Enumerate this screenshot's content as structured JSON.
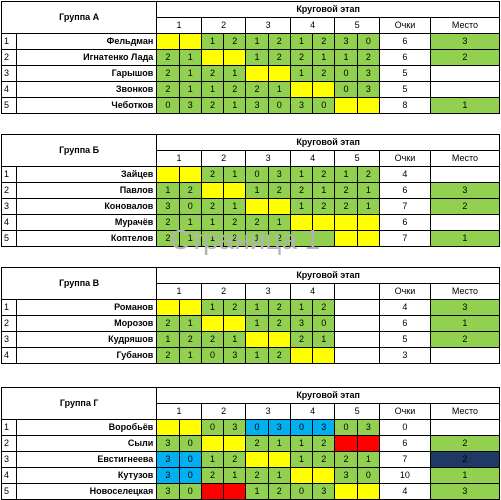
{
  "stage_label": "Круговой этап",
  "points_label": "Очки",
  "place_label": "Место",
  "watermark": "Страница 1",
  "groups": [
    {
      "title": "Группа А",
      "rounds": [
        "1",
        "2",
        "3",
        "4",
        "5"
      ],
      "rows": [
        {
          "num": "1",
          "name": "Фельдман",
          "cells": [
            {
              "a": "",
              "b": "",
              "c": "y"
            },
            {
              "a": "1",
              "b": "2",
              "c": "g"
            },
            {
              "a": "1",
              "b": "2",
              "c": "g"
            },
            {
              "a": "1",
              "b": "2",
              "c": "g"
            },
            {
              "a": "3",
              "b": "0",
              "c": "g"
            }
          ],
          "points": "6",
          "place": "3",
          "place_c": "g"
        },
        {
          "num": "2",
          "name": "Игнатенко Лада",
          "cells": [
            {
              "a": "2",
              "b": "1",
              "c": "g"
            },
            {
              "a": "",
              "b": "",
              "c": "y"
            },
            {
              "a": "1",
              "b": "2",
              "c": "g"
            },
            {
              "a": "2",
              "b": "1",
              "c": "g"
            },
            {
              "a": "1",
              "b": "2",
              "c": "g"
            }
          ],
          "points": "6",
          "place": "2",
          "place_c": "g"
        },
        {
          "num": "3",
          "name": "Гарышов",
          "cells": [
            {
              "a": "2",
              "b": "1",
              "c": "g"
            },
            {
              "a": "2",
              "b": "1",
              "c": "g"
            },
            {
              "a": "",
              "b": "",
              "c": "y"
            },
            {
              "a": "1",
              "b": "2",
              "c": "g"
            },
            {
              "a": "0",
              "b": "3",
              "c": "g"
            }
          ],
          "points": "5",
          "place": "",
          "place_c": "w"
        },
        {
          "num": "4",
          "name": "Звонков",
          "cells": [
            {
              "a": "2",
              "b": "1",
              "c": "g"
            },
            {
              "a": "1",
              "b": "2",
              "c": "g"
            },
            {
              "a": "2",
              "b": "1",
              "c": "g"
            },
            {
              "a": "",
              "b": "",
              "c": "y"
            },
            {
              "a": "0",
              "b": "3",
              "c": "g"
            }
          ],
          "points": "5",
          "place": "",
          "place_c": "w"
        },
        {
          "num": "5",
          "name": "Чеботков",
          "cells": [
            {
              "a": "0",
              "b": "3",
              "c": "g"
            },
            {
              "a": "2",
              "b": "1",
              "c": "g"
            },
            {
              "a": "3",
              "b": "0",
              "c": "g"
            },
            {
              "a": "3",
              "b": "0",
              "c": "g"
            },
            {
              "a": "",
              "b": "",
              "c": "y"
            }
          ],
          "points": "8",
          "place": "1",
          "place_c": "g"
        }
      ]
    },
    {
      "title": "Группа Б",
      "rounds": [
        "1",
        "2",
        "3",
        "4",
        "5"
      ],
      "rows": [
        {
          "num": "1",
          "name": "Зайцев",
          "cells": [
            {
              "a": "",
              "b": "",
              "c": "y"
            },
            {
              "a": "2",
              "b": "1",
              "c": "g"
            },
            {
              "a": "0",
              "b": "3",
              "c": "g"
            },
            {
              "a": "1",
              "b": "2",
              "c": "g"
            },
            {
              "a": "1",
              "b": "2",
              "c": "g"
            }
          ],
          "points": "4",
          "place": "",
          "place_c": "w"
        },
        {
          "num": "2",
          "name": "Павлов",
          "cells": [
            {
              "a": "1",
              "b": "2",
              "c": "g"
            },
            {
              "a": "",
              "b": "",
              "c": "y"
            },
            {
              "a": "1",
              "b": "2",
              "c": "g"
            },
            {
              "a": "2",
              "b": "1",
              "c": "g"
            },
            {
              "a": "2",
              "b": "1",
              "c": "g"
            }
          ],
          "points": "6",
          "place": "3",
          "place_c": "g"
        },
        {
          "num": "3",
          "name": "Коновалов",
          "cells": [
            {
              "a": "3",
              "b": "0",
              "c": "g"
            },
            {
              "a": "2",
              "b": "1",
              "c": "g"
            },
            {
              "a": "",
              "b": "",
              "c": "y"
            },
            {
              "a": "1",
              "b": "2",
              "c": "g"
            },
            {
              "a": "2",
              "b": "1",
              "c": "g"
            }
          ],
          "points": "7",
          "place": "2",
          "place_c": "g"
        },
        {
          "num": "4",
          "name": "Мурачёв",
          "cells": [
            {
              "a": "2",
              "b": "1",
              "c": "g"
            },
            {
              "a": "1",
              "b": "2",
              "c": "g"
            },
            {
              "a": "2",
              "b": "1",
              "c": "g"
            },
            {
              "a": "",
              "b": "",
              "c": "y"
            },
            {
              "a": "",
              "b": "",
              "c": "y"
            }
          ],
          "points": "6",
          "place": "",
          "place_c": "w"
        },
        {
          "num": "5",
          "name": "Коптелов",
          "cells": [
            {
              "a": "2",
              "b": "1",
              "c": "g"
            },
            {
              "a": "1",
              "b": "2",
              "c": "g"
            },
            {
              "a": "1",
              "b": "2",
              "c": "g"
            },
            {
              "a": "",
              "b": "",
              "c": "g"
            },
            {
              "a": "",
              "b": "",
              "c": "y"
            }
          ],
          "points": "7",
          "place": "1",
          "place_c": "g"
        }
      ]
    },
    {
      "title": "Группа В",
      "rounds": [
        "1",
        "2",
        "3",
        "4"
      ],
      "rows": [
        {
          "num": "1",
          "name": "Романов",
          "cells": [
            {
              "a": "",
              "b": "",
              "c": "y"
            },
            {
              "a": "1",
              "b": "2",
              "c": "g"
            },
            {
              "a": "1",
              "b": "2",
              "c": "g"
            },
            {
              "a": "1",
              "b": "2",
              "c": "g"
            }
          ],
          "points": "4",
          "place": "3",
          "place_c": "g"
        },
        {
          "num": "2",
          "name": "Морозов",
          "cells": [
            {
              "a": "2",
              "b": "1",
              "c": "g"
            },
            {
              "a": "",
              "b": "",
              "c": "y"
            },
            {
              "a": "1",
              "b": "2",
              "c": "g"
            },
            {
              "a": "3",
              "b": "0",
              "c": "g"
            }
          ],
          "points": "6",
          "place": "1",
          "place_c": "g"
        },
        {
          "num": "3",
          "name": "Кудряшов",
          "cells": [
            {
              "a": "1",
              "b": "2",
              "c": "g"
            },
            {
              "a": "2",
              "b": "1",
              "c": "g"
            },
            {
              "a": "",
              "b": "",
              "c": "y"
            },
            {
              "a": "2",
              "b": "1",
              "c": "g"
            }
          ],
          "points": "5",
          "place": "2",
          "place_c": "g"
        },
        {
          "num": "4",
          "name": "Губанов",
          "cells": [
            {
              "a": "2",
              "b": "1",
              "c": "g"
            },
            {
              "a": "0",
              "b": "3",
              "c": "g"
            },
            {
              "a": "1",
              "b": "2",
              "c": "g"
            },
            {
              "a": "",
              "b": "",
              "c": "y"
            }
          ],
          "points": "3",
          "place": "",
          "place_c": "w"
        }
      ]
    },
    {
      "title": "Группа Г",
      "rounds": [
        "1",
        "2",
        "3",
        "4",
        "5"
      ],
      "rows": [
        {
          "num": "1",
          "name": "Воробьёв",
          "cells": [
            {
              "a": "",
              "b": "",
              "c": "y"
            },
            {
              "a": "0",
              "b": "3",
              "c": "g"
            },
            {
              "a": "0",
              "b": "3",
              "c": "bl"
            },
            {
              "a": "0",
              "b": "3",
              "c": "bl"
            },
            {
              "a": "0",
              "b": "3",
              "c": "g"
            }
          ],
          "points": "0",
          "place": "",
          "place_c": "w"
        },
        {
          "num": "2",
          "name": "Сыли",
          "cells": [
            {
              "a": "3",
              "b": "0",
              "c": "g"
            },
            {
              "a": "",
              "b": "",
              "c": "y"
            },
            {
              "a": "2",
              "b": "1",
              "c": "g"
            },
            {
              "a": "1",
              "b": "2",
              "c": "g"
            },
            {
              "a": "",
              "b": "",
              "c": "r"
            }
          ],
          "points": "6",
          "place": "2",
          "place_c": "g"
        },
        {
          "num": "3",
          "name": "Евстигнеева",
          "cells": [
            {
              "a": "3",
              "b": "0",
              "c": "bl"
            },
            {
              "a": "1",
              "b": "2",
              "c": "g"
            },
            {
              "a": "",
              "b": "",
              "c": "y"
            },
            {
              "a": "1",
              "b": "2",
              "c": "g"
            },
            {
              "a": "2",
              "b": "1",
              "c": "g"
            }
          ],
          "points": "7",
          "place": "2",
          "place_c": "dk"
        },
        {
          "num": "4",
          "name": "Кутузов",
          "cells": [
            {
              "a": "3",
              "b": "0",
              "c": "bl"
            },
            {
              "a": "2",
              "b": "1",
              "c": "g"
            },
            {
              "a": "2",
              "b": "1",
              "c": "g"
            },
            {
              "a": "",
              "b": "",
              "c": "y"
            },
            {
              "a": "3",
              "b": "0",
              "c": "g"
            }
          ],
          "points": "10",
          "place": "1",
          "place_c": "g"
        },
        {
          "num": "5",
          "name": "Новоселецкая",
          "cells": [
            {
              "a": "3",
              "b": "0",
              "c": "g"
            },
            {
              "a": "",
              "b": "",
              "c": "r"
            },
            {
              "a": "1",
              "b": "2",
              "c": "g"
            },
            {
              "a": "0",
              "b": "3",
              "c": "g"
            },
            {
              "a": "",
              "b": "",
              "c": "y"
            }
          ],
          "points": "4",
          "place": "3",
          "place_c": "g"
        }
      ]
    }
  ]
}
